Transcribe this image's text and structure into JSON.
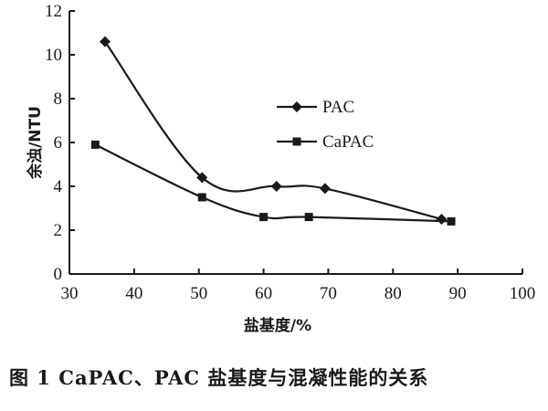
{
  "caption": "图 1   CaPAC、PAC 盐基度与混凝性能的关系",
  "chart_data": {
    "type": "line",
    "xlabel": "盐基度/%",
    "ylabel": "余浊/NTU",
    "xlim": [
      30,
      100
    ],
    "ylim": [
      0,
      12
    ],
    "xticks": [
      30,
      40,
      50,
      60,
      70,
      80,
      90,
      100
    ],
    "yticks": [
      0,
      2,
      4,
      6,
      8,
      10,
      12
    ],
    "legend_position": "center-right",
    "grid": false,
    "series": [
      {
        "name": "PAC",
        "marker": "diamond",
        "color": "#1a1a1a",
        "x": [
          35.5,
          50.5,
          62,
          69.5,
          87.5
        ],
        "y": [
          10.6,
          4.4,
          4.0,
          3.9,
          2.5
        ]
      },
      {
        "name": "CaPAC",
        "marker": "square",
        "color": "#1a1a1a",
        "x": [
          34,
          50.5,
          60,
          67,
          89
        ],
        "y": [
          5.9,
          3.5,
          2.6,
          2.6,
          2.4
        ]
      }
    ]
  }
}
